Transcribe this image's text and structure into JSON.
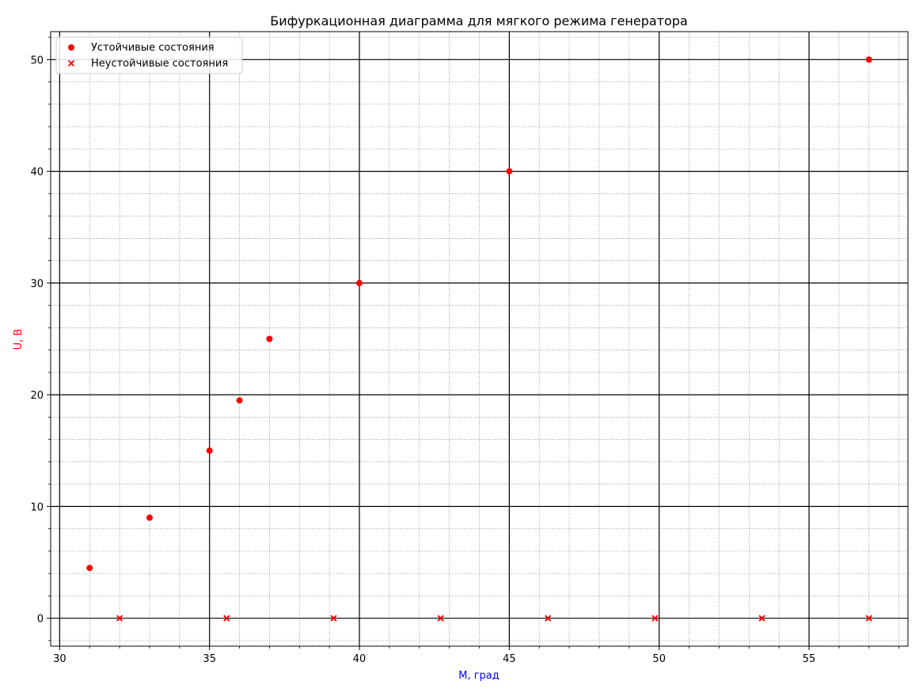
{
  "chart_data": {
    "type": "scatter",
    "title": "Бифуркационная диаграмма для мягкого режима генератора",
    "xlabel": "M, град",
    "ylabel": "U, В",
    "xlabel_color": "#0000ff",
    "ylabel_color": "#ff0000",
    "xlim": [
      29.7,
      58.3
    ],
    "ylim": [
      -2.5,
      52.5
    ],
    "x_ticks": [
      30,
      35,
      40,
      45,
      50,
      55
    ],
    "x_tick_labels": [
      "30",
      "35",
      "40",
      "45",
      "50",
      "55"
    ],
    "y_ticks": [
      0,
      10,
      20,
      30,
      40,
      50
    ],
    "y_tick_labels": [
      "0",
      "10",
      "20",
      "30",
      "40",
      "50"
    ],
    "x_minor_step": 1,
    "y_minor_step": 2,
    "grid": true,
    "legend_position": "top-left",
    "series": [
      {
        "name": "Устойчивые состояния",
        "marker": "circle",
        "color": "#ff0000",
        "x": [
          31,
          33,
          35,
          36,
          37,
          40,
          45,
          57
        ],
        "y": [
          4.5,
          9,
          15,
          19.5,
          25,
          30,
          40,
          50
        ]
      },
      {
        "name": "Неустойчивые состояния",
        "marker": "x",
        "color": "#ff0000",
        "x": [
          32,
          35.57,
          39.14,
          42.71,
          46.29,
          49.86,
          53.43,
          57
        ],
        "y": [
          0,
          0,
          0,
          0,
          0,
          0,
          0,
          0
        ]
      }
    ]
  }
}
